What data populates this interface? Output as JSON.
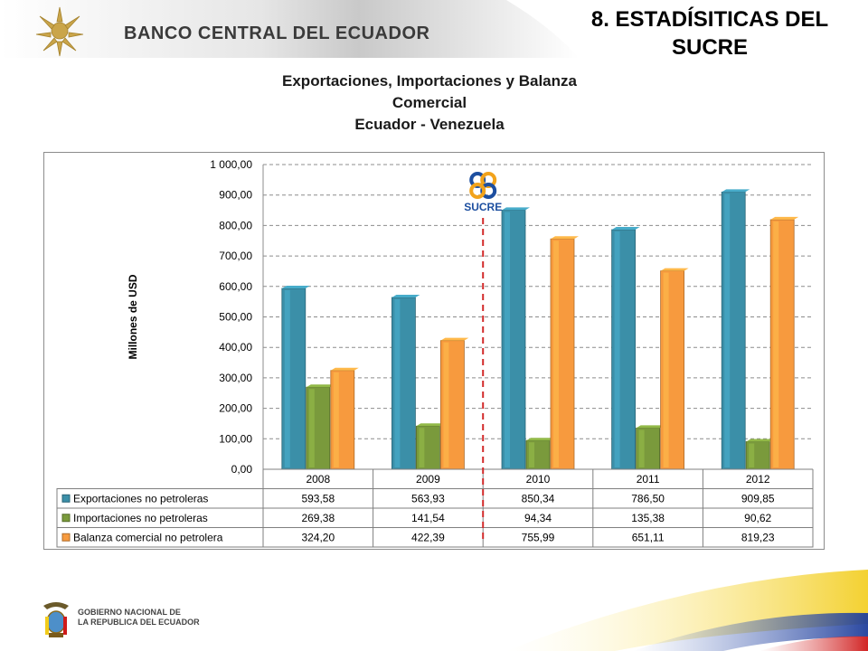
{
  "header": {
    "bank_name": "BANCO CENTRAL DEL ECUADOR",
    "section_title_line1": "8. ESTADÍSITICAS DEL",
    "section_title_line2": "SUCRE"
  },
  "footer": {
    "gov_line1": "GOBIERNO NACIONAL DE",
    "gov_line2": "LA REPUBLICA DEL ECUADOR"
  },
  "sucre_logo_text": "SUCRE",
  "colors": {
    "exports": "#3b8fa8",
    "imports": "#7a9a3c",
    "balance": "#f79a3e",
    "divider": "#d22b2b",
    "gridline": "#8c8c8c"
  },
  "chart_data": {
    "type": "bar",
    "title_lines": [
      "Exportaciones, Importaciones y Balanza",
      "Comercial",
      "Ecuador - Venezuela"
    ],
    "ylabel": "Millones de USD",
    "ylim": [
      0,
      1000
    ],
    "yticks": [
      0,
      100,
      200,
      300,
      400,
      500,
      600,
      700,
      800,
      900,
      1000
    ],
    "ytick_labels": [
      "0,00",
      "100,00",
      "200,00",
      "300,00",
      "400,00",
      "500,00",
      "600,00",
      "700,00",
      "800,00",
      "900,00",
      "1 000,00"
    ],
    "grid": true,
    "legend": "data-table",
    "categories": [
      "2008",
      "2009",
      "2010",
      "2011",
      "2012"
    ],
    "series": [
      {
        "name": "Exportaciones no petroleras",
        "values": [
          593.58,
          563.93,
          850.34,
          786.5,
          909.85
        ],
        "labels": [
          "593,58",
          "563,93",
          "850,34",
          "786,50",
          "909,85"
        ]
      },
      {
        "name": "Importaciones no petroleras",
        "values": [
          269.38,
          141.54,
          94.34,
          135.38,
          90.62
        ],
        "labels": [
          "269,38",
          "141,54",
          "94,34",
          "135,38",
          "90,62"
        ]
      },
      {
        "name": "Balanza comercial no petrolera",
        "values": [
          324.2,
          422.39,
          755.99,
          651.11,
          819.23
        ],
        "labels": [
          "324,20",
          "422,39",
          "755,99",
          "651,11",
          "819,23"
        ]
      }
    ]
  }
}
